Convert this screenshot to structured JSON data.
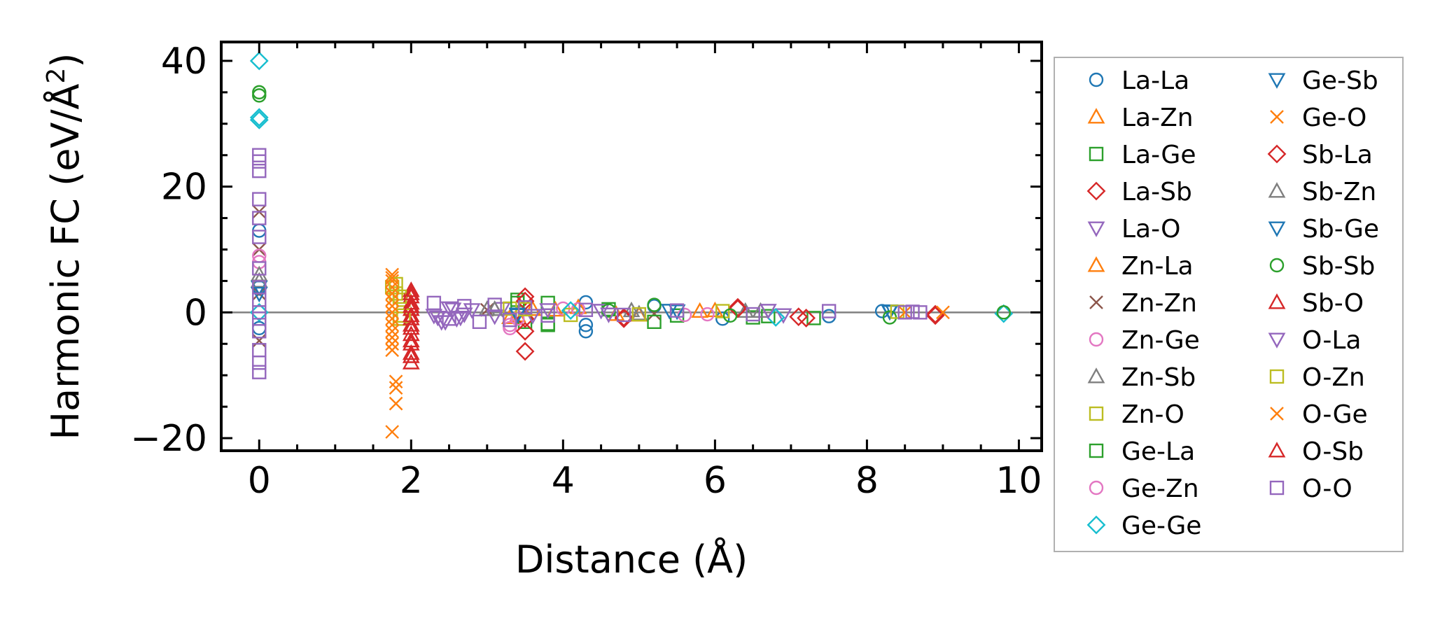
{
  "chart_data": {
    "type": "scatter",
    "title": "",
    "xlabel": "Distance (Å)",
    "ylabel_main": "Harmonic FC (eV/Å",
    "ylabel_sup": "2",
    "ylabel_close": ")",
    "xlim": [
      -0.5,
      10.3
    ],
    "ylim": [
      -22,
      43
    ],
    "xticks": [
      0,
      2,
      4,
      6,
      8,
      10
    ],
    "xtick_labels": [
      "0",
      "2",
      "4",
      "6",
      "8",
      "10"
    ],
    "yticks": [
      -20,
      0,
      20,
      40
    ],
    "ytick_labels": [
      "−20",
      "0",
      "20",
      "40"
    ],
    "zero_line": true,
    "grid": false,
    "legend_position": "outside-right",
    "legend_columns": 2,
    "series": [
      {
        "name": "La-La",
        "marker": "circle",
        "color": "#1f77b4",
        "points": [
          [
            0,
            13
          ],
          [
            0,
            -2.5
          ],
          [
            0,
            4
          ],
          [
            4.3,
            -3
          ],
          [
            4.3,
            -2
          ],
          [
            4.3,
            1.6
          ],
          [
            5.2,
            1
          ],
          [
            6.1,
            -1
          ],
          [
            7.5,
            -0.6
          ],
          [
            8.2,
            0.2
          ]
        ]
      },
      {
        "name": "La-Zn",
        "marker": "triangle-up",
        "color": "#ff7f0e",
        "points": [
          [
            3.4,
            -0.5
          ],
          [
            3.6,
            0.5
          ],
          [
            4.2,
            0.8
          ],
          [
            5.0,
            -0.4
          ],
          [
            6.0,
            0.3
          ]
        ]
      },
      {
        "name": "La-Ge",
        "marker": "square",
        "color": "#2ca02c",
        "points": [
          [
            3.4,
            2
          ],
          [
            3.5,
            -1.5
          ],
          [
            3.8,
            -2
          ],
          [
            3.8,
            1.5
          ],
          [
            4.6,
            0.5
          ],
          [
            5.5,
            -0.5
          ],
          [
            6.5,
            -0.8
          ],
          [
            7.3,
            -0.9
          ]
        ]
      },
      {
        "name": "La-Sb",
        "marker": "diamond",
        "color": "#d62728",
        "points": [
          [
            3.5,
            2.5
          ],
          [
            3.5,
            -1
          ],
          [
            4.8,
            -1
          ],
          [
            6.3,
            0.8
          ],
          [
            7.1,
            -0.7
          ],
          [
            8.9,
            -0.3
          ]
        ]
      },
      {
        "name": "La-O",
        "marker": "triangle-down",
        "color": "#9467bd",
        "points": [
          [
            2.3,
            -0.5
          ],
          [
            2.4,
            -1.5
          ],
          [
            2.5,
            0.7
          ],
          [
            2.6,
            -1
          ],
          [
            2.7,
            -0.3
          ],
          [
            3.2,
            0.6
          ],
          [
            3.6,
            -0.5
          ],
          [
            4.5,
            0.3
          ],
          [
            6.9,
            -0.4
          ]
        ]
      },
      {
        "name": "Zn-La",
        "marker": "triangle-up",
        "color": "#ff7f0e",
        "points": [
          [
            3.3,
            -0.8
          ],
          [
            3.9,
            0.4
          ],
          [
            4.7,
            -0.3
          ],
          [
            5.8,
            0.2
          ]
        ]
      },
      {
        "name": "Zn-Zn",
        "marker": "x",
        "color": "#8c564b",
        "points": [
          [
            0,
            16
          ],
          [
            0,
            10
          ],
          [
            0,
            -4.5
          ],
          [
            0,
            3
          ],
          [
            3.0,
            0.4
          ],
          [
            5.2,
            -0.2
          ]
        ]
      },
      {
        "name": "Zn-Ge",
        "marker": "circle",
        "color": "#e377c2",
        "points": [
          [
            0,
            8
          ],
          [
            3.3,
            -2.5
          ],
          [
            3.4,
            -1
          ],
          [
            4.0,
            0.6
          ],
          [
            5.6,
            -0.4
          ]
        ]
      },
      {
        "name": "Zn-Sb",
        "marker": "triangle-up",
        "color": "#7f7f7f",
        "points": [
          [
            0,
            6
          ],
          [
            3.0,
            0.5
          ],
          [
            4.9,
            0.3
          ],
          [
            6.4,
            0.2
          ]
        ]
      },
      {
        "name": "Zn-O",
        "marker": "square",
        "color": "#bcbd22",
        "points": [
          [
            1.75,
            4
          ],
          [
            1.8,
            3
          ],
          [
            1.85,
            -1
          ],
          [
            1.9,
            2
          ],
          [
            3.3,
            0.6
          ],
          [
            4.1,
            -0.4
          ],
          [
            6.1,
            0.2
          ]
        ]
      },
      {
        "name": "Ge-La",
        "marker": "square",
        "color": "#2ca02c",
        "points": [
          [
            3.4,
            1.5
          ],
          [
            3.8,
            -1.8
          ],
          [
            5.2,
            -1.5
          ],
          [
            6.7,
            -0.6
          ]
        ]
      },
      {
        "name": "Ge-Zn",
        "marker": "circle",
        "color": "#e377c2",
        "points": [
          [
            0,
            9
          ],
          [
            3.3,
            -2
          ],
          [
            4.2,
            0.5
          ],
          [
            5.9,
            -0.3
          ]
        ]
      },
      {
        "name": "Ge-Ge",
        "marker": "diamond",
        "color": "#17becf",
        "points": [
          [
            0,
            40
          ],
          [
            0,
            31
          ],
          [
            0,
            30.6
          ],
          [
            0,
            0
          ],
          [
            4.1,
            0.3
          ],
          [
            6.8,
            -0.8
          ],
          [
            9.8,
            -0.2
          ]
        ]
      },
      {
        "name": "Ge-Sb",
        "marker": "triangle-down",
        "color": "#1f77b4",
        "points": [
          [
            0,
            4
          ],
          [
            3.4,
            -0.4
          ],
          [
            5.4,
            0.3
          ],
          [
            8.3,
            0.2
          ]
        ]
      },
      {
        "name": "Ge-O",
        "marker": "x",
        "color": "#ff7f0e",
        "points": [
          [
            1.75,
            6
          ],
          [
            1.75,
            5
          ],
          [
            1.75,
            4
          ],
          [
            1.75,
            2
          ],
          [
            1.75,
            -1
          ],
          [
            1.75,
            -3
          ],
          [
            1.75,
            -5
          ],
          [
            1.8,
            -11
          ],
          [
            1.8,
            -12
          ],
          [
            1.8,
            -14.5
          ],
          [
            1.75,
            -19
          ]
        ]
      },
      {
        "name": "Sb-La",
        "marker": "diamond",
        "color": "#d62728",
        "points": [
          [
            3.5,
            -6.2
          ],
          [
            3.5,
            1.8
          ],
          [
            3.5,
            -3
          ],
          [
            4.8,
            -0.8
          ],
          [
            6.3,
            0.6
          ],
          [
            7.2,
            -0.9
          ],
          [
            8.9,
            -0.5
          ]
        ]
      },
      {
        "name": "Sb-Zn",
        "marker": "triangle-up",
        "color": "#7f7f7f",
        "points": [
          [
            0,
            5
          ],
          [
            3.1,
            0.5
          ],
          [
            5.0,
            -0.2
          ],
          [
            6.6,
            0.2
          ]
        ]
      },
      {
        "name": "Sb-Ge",
        "marker": "triangle-down",
        "color": "#1f77b4",
        "points": [
          [
            0,
            3
          ],
          [
            3.4,
            -0.3
          ],
          [
            5.5,
            0.2
          ],
          [
            8.3,
            0.1
          ]
        ]
      },
      {
        "name": "Sb-Sb",
        "marker": "circle",
        "color": "#2ca02c",
        "points": [
          [
            0,
            35
          ],
          [
            0,
            34.5
          ],
          [
            4.6,
            0.3
          ],
          [
            5.2,
            1.2
          ],
          [
            6.2,
            -0.5
          ],
          [
            8.3,
            -0.8
          ],
          [
            9.8,
            0
          ]
        ]
      },
      {
        "name": "Sb-O",
        "marker": "triangle-up",
        "color": "#d62728",
        "points": [
          [
            2.0,
            3.5
          ],
          [
            2.0,
            2.5
          ],
          [
            2.0,
            1.5
          ],
          [
            2.0,
            0.5
          ],
          [
            2.0,
            -1
          ],
          [
            2.0,
            -2
          ],
          [
            2.0,
            -3.5
          ],
          [
            2.0,
            -5
          ],
          [
            2.0,
            -6.5
          ],
          [
            2.0,
            -8
          ]
        ]
      },
      {
        "name": "O-La",
        "marker": "triangle-down",
        "color": "#9467bd",
        "points": [
          [
            2.35,
            -0.8
          ],
          [
            2.45,
            -1.5
          ],
          [
            2.55,
            0.5
          ],
          [
            2.65,
            -0.8
          ],
          [
            2.8,
            0.4
          ],
          [
            3.1,
            -0.6
          ],
          [
            3.8,
            0.4
          ],
          [
            4.6,
            -0.3
          ],
          [
            6.7,
            0.3
          ]
        ]
      },
      {
        "name": "O-Zn",
        "marker": "square",
        "color": "#bcbd22",
        "points": [
          [
            1.8,
            4.5
          ],
          [
            1.85,
            2.5
          ],
          [
            1.9,
            -0.5
          ],
          [
            3.5,
            0.5
          ],
          [
            5.0,
            -0.3
          ],
          [
            8.4,
            0.1
          ]
        ]
      },
      {
        "name": "O-Ge",
        "marker": "x",
        "color": "#ff7f0e",
        "points": [
          [
            1.75,
            5.5
          ],
          [
            1.75,
            3
          ],
          [
            1.75,
            1
          ],
          [
            1.75,
            0
          ],
          [
            1.75,
            -2
          ],
          [
            1.75,
            -4
          ],
          [
            1.75,
            -6
          ],
          [
            8.5,
            0
          ],
          [
            9.0,
            0
          ]
        ]
      },
      {
        "name": "O-Sb",
        "marker": "triangle-up",
        "color": "#d62728",
        "points": [
          [
            2.0,
            3
          ],
          [
            2.0,
            1
          ],
          [
            2.0,
            -0.5
          ],
          [
            2.0,
            -2.5
          ],
          [
            2.0,
            -4.5
          ],
          [
            2.0,
            -7
          ]
        ]
      },
      {
        "name": "O-O",
        "marker": "square",
        "color": "#9467bd",
        "points": [
          [
            0,
            25
          ],
          [
            0,
            24
          ],
          [
            0,
            22.5
          ],
          [
            0,
            18
          ],
          [
            0,
            15
          ],
          [
            0,
            12
          ],
          [
            0,
            7
          ],
          [
            0,
            4
          ],
          [
            0,
            2
          ],
          [
            0,
            0
          ],
          [
            0,
            -1
          ],
          [
            0,
            -3
          ],
          [
            0,
            -6
          ],
          [
            0,
            -8
          ],
          [
            0,
            -9.5
          ],
          [
            2.3,
            1.5
          ],
          [
            2.5,
            -1
          ],
          [
            2.7,
            1
          ],
          [
            2.9,
            -1.5
          ],
          [
            3.1,
            1.2
          ],
          [
            3.3,
            -1.2
          ],
          [
            3.5,
            0.8
          ],
          [
            3.8,
            -0.5
          ],
          [
            4.3,
            0.4
          ],
          [
            4.8,
            -0.4
          ],
          [
            5.5,
            0.3
          ],
          [
            6.5,
            -0.3
          ],
          [
            7.5,
            0.2
          ],
          [
            8.5,
            0
          ],
          [
            8.6,
            0.1
          ],
          [
            8.7,
            0
          ]
        ]
      }
    ]
  }
}
